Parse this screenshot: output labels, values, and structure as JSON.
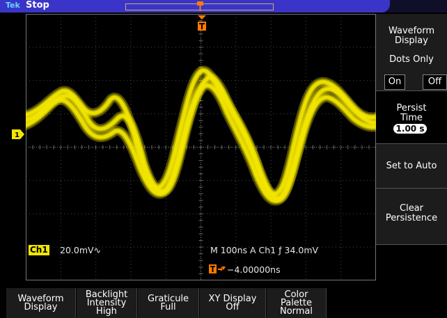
{
  "top_bar": {
    "logo": "Tek",
    "run_status": "Stop"
  },
  "readouts": {
    "ch1_label": "Ch1",
    "ch1_scale": "20.0mV∿",
    "timebase": "M 100ns  A  Ch1  ƒ  34.0mV",
    "trigger_offset": "−4.00000ns"
  },
  "side_menu": {
    "title": "Waveform Display",
    "dots_only_label": "Dots Only",
    "dots_on": "On",
    "dots_off": "Off",
    "persist_label": "Persist Time",
    "persist_value": "1.00 s",
    "set_to_auto": "Set to Auto",
    "clear_persistence": "Clear Persistence"
  },
  "bottom_menu": {
    "waveform_display": "Waveform\nDisplay",
    "backlight": "Backlight\nIntensity\nHigh",
    "graticule": "Graticule\nFull",
    "xy_display": "XY Display\nOff",
    "color_palette": "Color\nPalette\nNormal"
  },
  "colors": {
    "waveform": "#f2e600",
    "trigger_marker": "#ff7a00",
    "top_bar": "#3b34c8"
  }
}
